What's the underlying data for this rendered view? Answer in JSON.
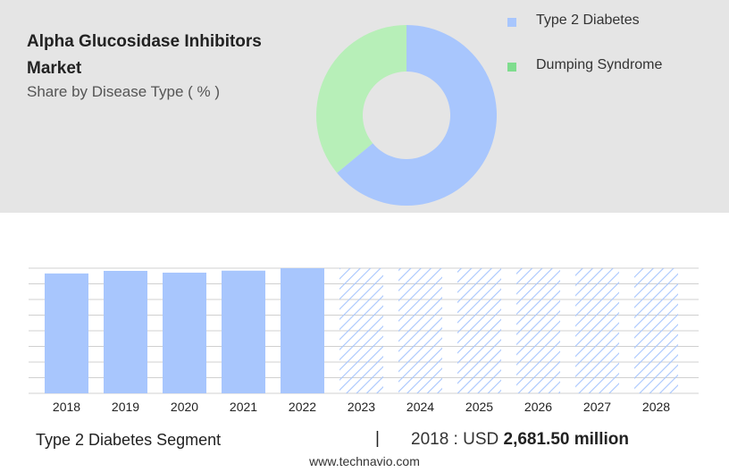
{
  "header": {
    "title": "Alpha Glucosidase Inhibitors Market",
    "subtitle": "Share by Disease Type ( % )"
  },
  "chart_data": [
    {
      "type": "pie",
      "labels": [
        "Type 2 Diabetes",
        "Dumping Syndrome"
      ],
      "values": [
        64,
        36
      ],
      "colors": [
        "#a8c6fd",
        "#b7efb8"
      ],
      "legend_swatch_colors": [
        "#a8c6fd",
        "#7fdd8e"
      ],
      "legend": "right"
    },
    {
      "type": "bar",
      "categories": [
        "2018",
        "2019",
        "2020",
        "2021",
        "2022",
        "2023",
        "2024",
        "2025",
        "2026",
        "2027",
        "2028"
      ],
      "values": [
        2681.5,
        2740,
        2700,
        2745,
        2800,
        null,
        null,
        null,
        null,
        null,
        null
      ],
      "forecast": [
        false,
        false,
        false,
        false,
        false,
        true,
        true,
        true,
        true,
        true,
        true
      ],
      "ylim": [
        0,
        2800
      ],
      "grid": true,
      "bar_color": "#a8c6fd",
      "forecast_color": "#a8c6fd"
    }
  ],
  "footer": {
    "segment": "Type 2 Diabetes Segment",
    "separator": "|",
    "year_label": "2018 : USD",
    "amount": "2,681.50 million",
    "source": "www.technavio.com"
  }
}
